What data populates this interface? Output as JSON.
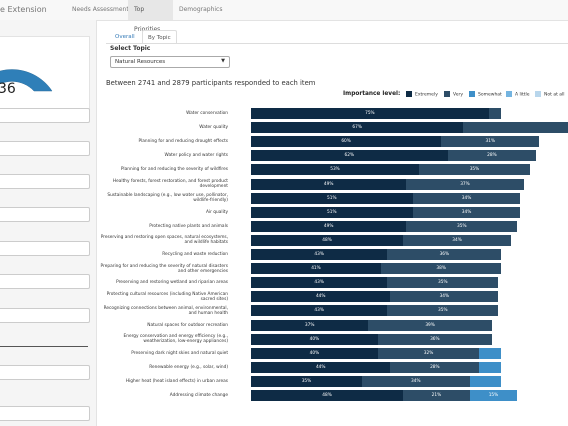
{
  "app": {
    "brand": "e Extension",
    "nav": [
      "Needs Assessment",
      "Top Priorities",
      "Demographics"
    ],
    "nav_active": 1
  },
  "sidebar": {
    "gauge_value": "36"
  },
  "tabs": [
    "Overall",
    "By Topic"
  ],
  "tabs_active": 1,
  "topic": {
    "label": "Select Topic",
    "value": "Natural Resources"
  },
  "responses": "Between 2741 and 2879 participants responded to each item",
  "legend": {
    "title": "Importance level:",
    "items": [
      {
        "label": "Extremely",
        "color": "#0e2b45"
      },
      {
        "label": "Very",
        "color": "#2d4d67"
      },
      {
        "label": "Somewhat",
        "color": "#3e8fc8"
      },
      {
        "label": "A little",
        "color": "#74b4e0"
      },
      {
        "label": "Not at all",
        "color": "#b8d6ec"
      }
    ]
  },
  "chart_data": {
    "type": "bar",
    "orientation": "horizontal",
    "stacked": true,
    "xlim": [
      0,
      100
    ],
    "series_names": [
      "Extremely",
      "Very",
      "Somewhat",
      "A little",
      "Not at all"
    ],
    "rows": [
      {
        "label": "Water conservation",
        "values": [
          75,
          4
        ],
        "labels": [
          "75%",
          ""
        ]
      },
      {
        "label": "Water quality",
        "values": [
          67,
          33
        ],
        "labels": [
          "67%",
          ""
        ]
      },
      {
        "label": "Planning for and reducing drought effects",
        "values": [
          60,
          31
        ],
        "labels": [
          "60%",
          "31%"
        ]
      },
      {
        "label": "Water policy and water rights",
        "values": [
          62,
          28
        ],
        "labels": [
          "62%",
          "28%"
        ]
      },
      {
        "label": "Planning for and reducing the severity of wildfires",
        "values": [
          53,
          35
        ],
        "labels": [
          "53%",
          "35%"
        ]
      },
      {
        "label": "Healthy forests, forest restoration, and forest product development",
        "values": [
          49,
          37
        ],
        "labels": [
          "49%",
          "37%"
        ]
      },
      {
        "label": "Sustainable landscaping (e.g., low water use, pollinator, wildlife-friendly)",
        "values": [
          51,
          34
        ],
        "labels": [
          "51%",
          "34%"
        ]
      },
      {
        "label": "Air quality",
        "values": [
          51,
          34
        ],
        "labels": [
          "51%",
          "34%"
        ]
      },
      {
        "label": "Protecting native plants and animals",
        "values": [
          49,
          35
        ],
        "labels": [
          "49%",
          "35%"
        ]
      },
      {
        "label": "Preserving and restoring open spaces, natural ecosystems, and wildlife habitats",
        "values": [
          48,
          34
        ],
        "labels": [
          "48%",
          "34%"
        ]
      },
      {
        "label": "Recycling and waste reduction",
        "values": [
          43,
          36
        ],
        "labels": [
          "43%",
          "36%"
        ]
      },
      {
        "label": "Preparing for and reducing the severity of natural disasters and other emergencies",
        "values": [
          41,
          38
        ],
        "labels": [
          "41%",
          "38%"
        ]
      },
      {
        "label": "Preserving and restoring wetland and riparian areas",
        "values": [
          43,
          35
        ],
        "labels": [
          "43%",
          "35%"
        ]
      },
      {
        "label": "Protecting cultural resources (including Native American sacred sites)",
        "values": [
          44,
          34
        ],
        "labels": [
          "44%",
          "34%"
        ]
      },
      {
        "label": "Recognizing connections between animal, environmental, and human health",
        "values": [
          43,
          35
        ],
        "labels": [
          "43%",
          "35%"
        ]
      },
      {
        "label": "Natural spaces for outdoor recreation",
        "values": [
          37,
          39
        ],
        "labels": [
          "37%",
          "39%"
        ]
      },
      {
        "label": "Energy conservation and energy efficiency (e.g., weatherization, low-energy appliances)",
        "values": [
          40,
          36
        ],
        "labels": [
          "40%",
          "36%"
        ]
      },
      {
        "label": "Preserving dark night skies and natural quiet",
        "values": [
          40,
          32,
          7
        ],
        "labels": [
          "40%",
          "32%",
          ""
        ]
      },
      {
        "label": "Renewable energy (e.g., solar, wind)",
        "values": [
          44,
          28,
          7
        ],
        "labels": [
          "44%",
          "28%",
          ""
        ]
      },
      {
        "label": "Higher heat (heat island effects) in urban areas",
        "values": [
          35,
          34,
          10
        ],
        "labels": [
          "35%",
          "34%",
          ""
        ]
      },
      {
        "label": "Addressing climate change",
        "values": [
          48,
          21,
          15
        ],
        "labels": [
          "48%",
          "21%",
          "15%"
        ]
      }
    ]
  }
}
